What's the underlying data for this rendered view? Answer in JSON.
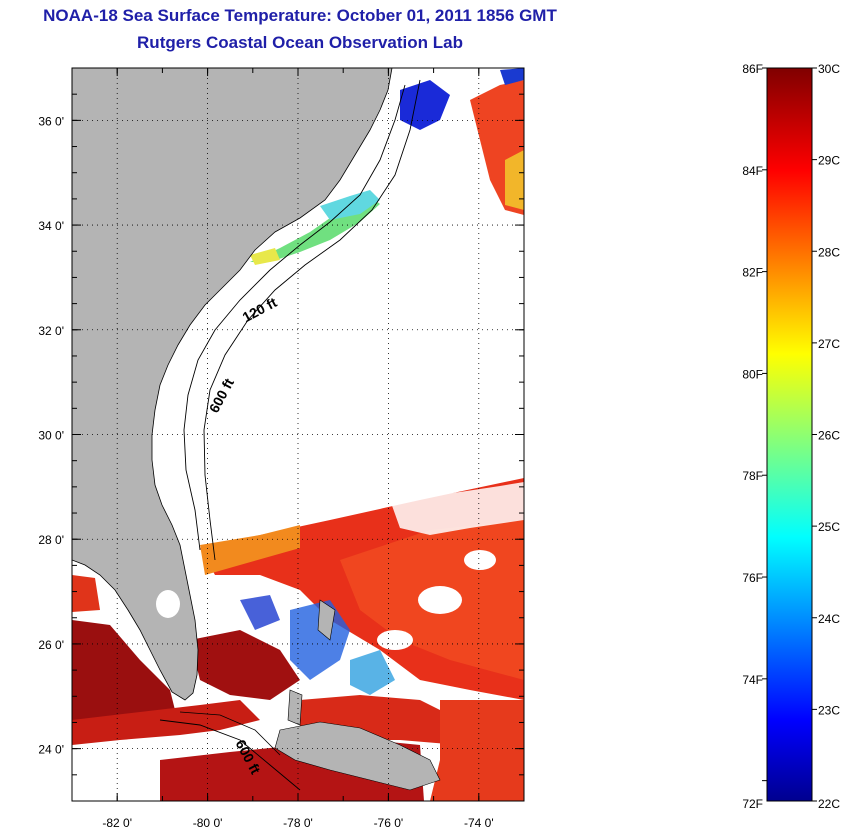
{
  "header": {
    "title": "NOAA-18 Sea Surface Temperature:  October 01, 2011 1856 GMT",
    "subtitle": "Rutgers Coastal Ocean Observation Lab"
  },
  "map": {
    "lon_range": [
      -83,
      -73
    ],
    "lat_range": [
      23,
      37
    ],
    "lon_ticks": [
      {
        "value": -82,
        "label": "-82 0'"
      },
      {
        "value": -80,
        "label": "-80 0'"
      },
      {
        "value": -78,
        "label": "-78 0'"
      },
      {
        "value": -76,
        "label": "-76 0'"
      },
      {
        "value": -74,
        "label": "-74 0'"
      }
    ],
    "lat_ticks": [
      {
        "value": 36,
        "label": "36 0'"
      },
      {
        "value": 34,
        "label": "34 0'"
      },
      {
        "value": 32,
        "label": "32 0'"
      },
      {
        "value": 30,
        "label": "30 0'"
      },
      {
        "value": 28,
        "label": "28 0'"
      },
      {
        "value": 26,
        "label": "26 0'"
      },
      {
        "value": 24,
        "label": "24 0'"
      }
    ],
    "contour_labels": [
      {
        "text": "120 ft",
        "lon": -78.8,
        "lat": 32.3,
        "angle": -28
      },
      {
        "text": "600 ft",
        "lon": -79.6,
        "lat": 30.7,
        "angle": -62
      },
      {
        "text": "600 ft",
        "lon": -79.2,
        "lat": 23.8,
        "angle": 62
      }
    ],
    "land_color": "#b4b4b4",
    "grid": "dotted"
  },
  "colorbar": {
    "celsius_range": [
      22,
      30
    ],
    "fahrenheit_range": [
      72,
      86
    ],
    "celsius_labels": [
      "30C",
      "29C",
      "28C",
      "27C",
      "26C",
      "25C",
      "24C",
      "23C",
      "22C"
    ],
    "fahrenheit_labels": [
      "86F",
      "84F",
      "82F",
      "80F",
      "78F",
      "76F",
      "74F",
      "72F"
    ],
    "fahrenheit_values": [
      86,
      84,
      82,
      80,
      78,
      76,
      74,
      72
    ],
    "colormap": "jet"
  }
}
